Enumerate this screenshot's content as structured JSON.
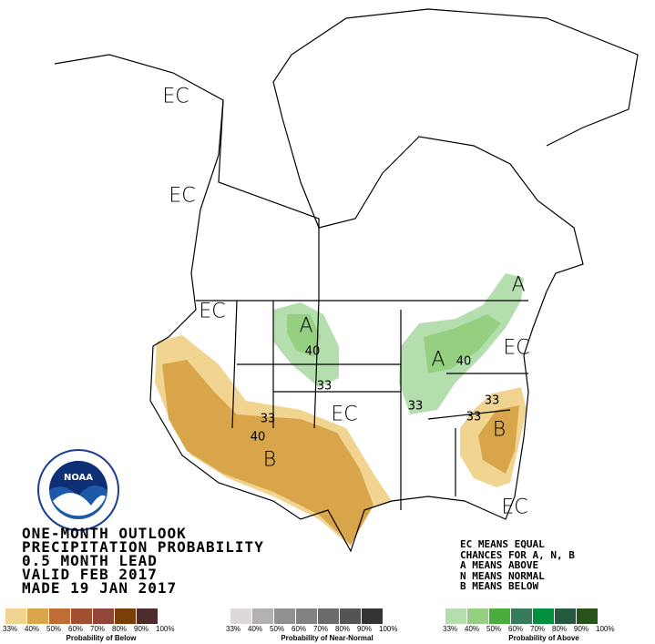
{
  "map_labels": {
    "ec": [
      "EC",
      "EC",
      "EC",
      "EC",
      "EC",
      "EC"
    ],
    "a": [
      "A",
      "A",
      "A"
    ],
    "b": [
      "B",
      "B"
    ],
    "contours": [
      "40",
      "33",
      "40",
      "33",
      "33",
      "40",
      "33",
      "33"
    ]
  },
  "title_lines": [
    "ONE-MONTH OUTLOOK",
    "PRECIPITATION PROBABILITY",
    "0.5 MONTH LEAD",
    "VALID FEB 2017",
    "MADE 19 JAN 2017"
  ],
  "key_lines": [
    "EC MEANS EQUAL",
    "CHANCES FOR A, N, B",
    "A MEANS ABOVE",
    "N MEANS NORMAL",
    "B MEANS BELOW"
  ],
  "logo_text": "NOAA",
  "legend": {
    "ticks": [
      "33%",
      "40%",
      "50%",
      "60%",
      "70%",
      "80%",
      "90%",
      "100%"
    ],
    "below": {
      "caption": "Probability of Below",
      "colors": [
        "#f0d48f",
        "#d9a54a",
        "#c06c35",
        "#a14f30",
        "#924639",
        "#7a3f09",
        "#4f2b2d"
      ]
    },
    "normal": {
      "caption": "Probability of Near-Normal",
      "colors": [
        "#dfd8d8",
        "#b4b0b0",
        "#929090",
        "#838181",
        "#6c6a6a",
        "#555353",
        "#343333"
      ]
    },
    "above": {
      "caption": "Probability of Above",
      "colors": [
        "#b5deae",
        "#95d080",
        "#49ae3c",
        "#367c5a",
        "#00903e",
        "#255a3e",
        "#28541b"
      ]
    }
  }
}
